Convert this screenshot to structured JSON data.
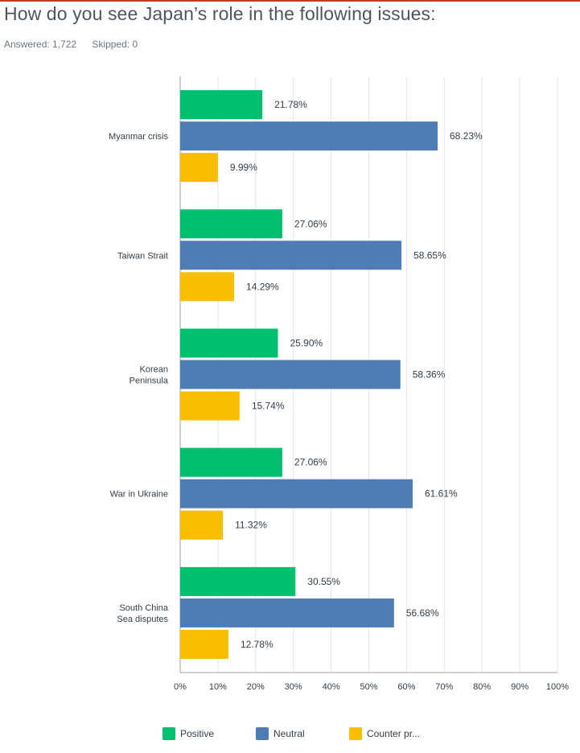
{
  "header": {
    "title": "How do you see Japan’s role in the following issues:",
    "answered": "Answered: 1,722",
    "skipped": "Skipped: 0"
  },
  "colors": {
    "Positive": "#00bf6f",
    "Neutral": "#507cb6",
    "Counter": "#f9be00"
  },
  "chart_data": {
    "type": "bar",
    "orientation": "horizontal",
    "title": "How do you see Japan’s role in the following issues:",
    "categories": [
      [
        "Myanmar crisis"
      ],
      [
        "Taiwan Strait"
      ],
      [
        "Korean",
        "Peninsula"
      ],
      [
        "War in Ukraine"
      ],
      [
        "South China",
        "Sea disputes"
      ]
    ],
    "series": [
      {
        "name": "Positive",
        "values": [
          21.78,
          27.06,
          25.9,
          27.06,
          30.55
        ]
      },
      {
        "name": "Neutral",
        "values": [
          68.23,
          58.65,
          58.36,
          61.61,
          56.68
        ]
      },
      {
        "name": "Counter pr...",
        "values": [
          9.99,
          14.29,
          15.74,
          11.32,
          12.78
        ]
      }
    ],
    "value_labels": [
      [
        "21.78%",
        "27.06%",
        "25.90%",
        "27.06%",
        "30.55%"
      ],
      [
        "68.23%",
        "58.65%",
        "58.36%",
        "61.61%",
        "56.68%"
      ],
      [
        "9.99%",
        "14.29%",
        "15.74%",
        "11.32%",
        "12.78%"
      ]
    ],
    "xlim": [
      0,
      100
    ],
    "xticks": [
      "0%",
      "10%",
      "20%",
      "30%",
      "40%",
      "50%",
      "60%",
      "70%",
      "80%",
      "90%",
      "100%"
    ],
    "grid": true,
    "legend_position": "bottom"
  }
}
